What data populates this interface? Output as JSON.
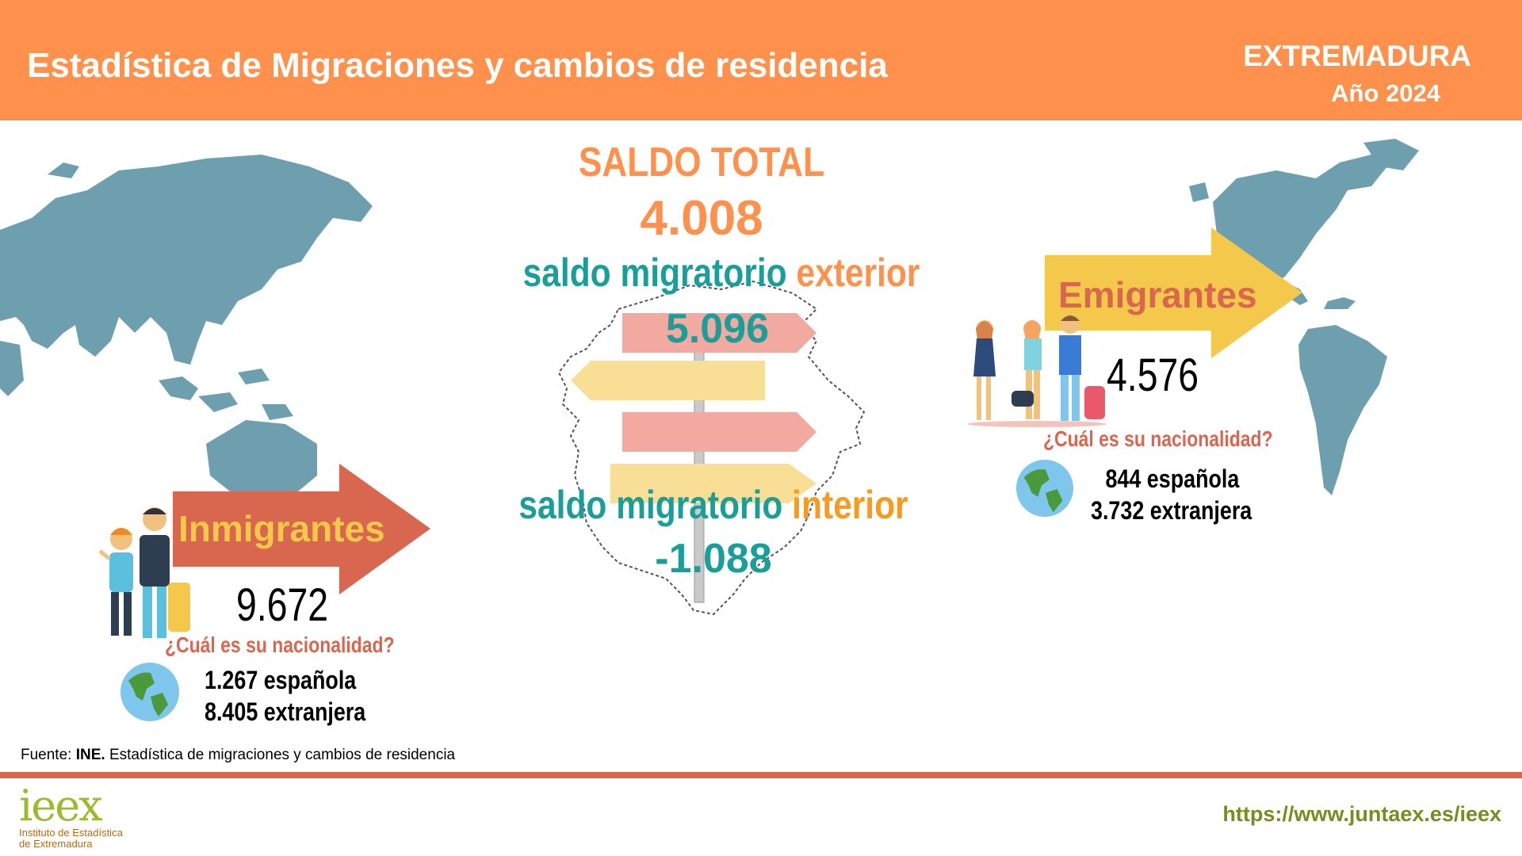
{
  "header": {
    "title": "Estadística de Migraciones y cambios de residencia",
    "region": "EXTREMADURA",
    "year": "Año 2024"
  },
  "center": {
    "saldo_total_label": "SALDO TOTAL",
    "saldo_total_value": "4.008",
    "exterior_label_a": "saldo migratorio",
    "exterior_label_b": "exterior",
    "exterior_value": "5.096",
    "interior_label_a": "saldo migratorio",
    "interior_label_b": "interior",
    "interior_value": "-1.088"
  },
  "immigrants": {
    "label": "Inmigrantes",
    "value": "9.672",
    "question": "¿Cuál es su nacionalidad?",
    "spanish": "1.267 española",
    "foreign": "8.405 extranjera"
  },
  "emigrants": {
    "label": "Emigrantes",
    "value": "4.576",
    "question": "¿Cuál es su nacionalidad?",
    "spanish": "844 española",
    "foreign": "3.732 extranjera"
  },
  "footer": {
    "source_prefix": "Fuente: ",
    "source_bold": "INE.",
    "source_rest": " Estadística de migraciones y cambios de residencia",
    "url": "https://www.juntaex.es/ieex",
    "logo": "ieex",
    "logo_line1": "Instituto de Estadística",
    "logo_line2": "de Extremadura"
  },
  "colors": {
    "header": "#FF914D",
    "teal": "#1A9E9A",
    "orange": "#FF914D",
    "arrow_red": "#D9664F",
    "arrow_yellow": "#F4C84B",
    "map": "#6D9FAE"
  },
  "icons": [
    "world-map-icon",
    "signpost-icon",
    "extremadura-map-icon",
    "globe-icon",
    "people-icon",
    "suitcase-icon"
  ]
}
